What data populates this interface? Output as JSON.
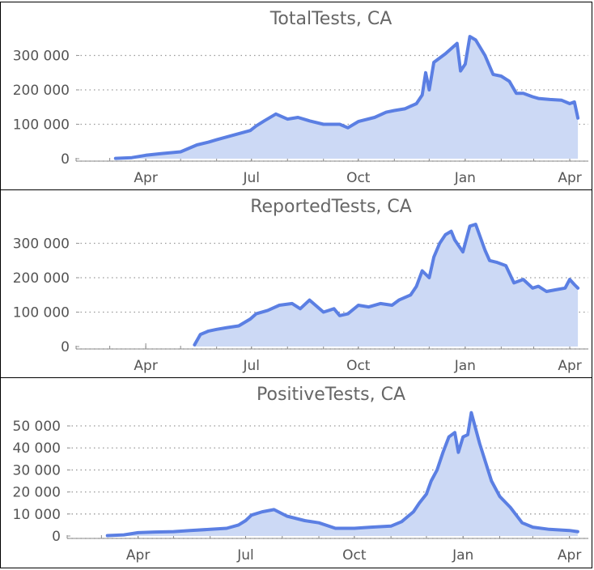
{
  "chart_data": [
    {
      "type": "area",
      "title": "TotalTests, CA",
      "x_tick_labels": [
        "Apr",
        "Jul",
        "Oct",
        "Jan",
        "Apr"
      ],
      "y_tick_labels": [
        "0",
        "100 000",
        "200 000",
        "300 000"
      ],
      "yticks": [
        0,
        100000,
        200000,
        300000
      ],
      "ylim": [
        0,
        360000
      ],
      "grid": "horizontal dotted",
      "series": [
        {
          "x": [
            "2020-03-06",
            "2020-03-20",
            "2020-04-01",
            "2020-04-15",
            "2020-05-01",
            "2020-05-15",
            "2020-05-25",
            "2020-06-01",
            "2020-06-15",
            "2020-06-30",
            "2020-07-05",
            "2020-07-12",
            "2020-07-22",
            "2020-08-01",
            "2020-08-10",
            "2020-08-20",
            "2020-09-01",
            "2020-09-15",
            "2020-09-22",
            "2020-10-01",
            "2020-10-15",
            "2020-10-25",
            "2020-11-01",
            "2020-11-10",
            "2020-11-20",
            "2020-11-25",
            "2020-11-28",
            "2020-12-01",
            "2020-12-05",
            "2020-12-15",
            "2020-12-25",
            "2020-12-28",
            "2021-01-01",
            "2021-01-05",
            "2021-01-10",
            "2021-01-18",
            "2021-01-25",
            "2021-02-01",
            "2021-02-08",
            "2021-02-14",
            "2021-02-20",
            "2021-02-28",
            "2021-03-05",
            "2021-03-15",
            "2021-03-25",
            "2021-04-01",
            "2021-04-05",
            "2021-04-08"
          ],
          "y": [
            1000,
            3000,
            10000,
            15000,
            20000,
            40000,
            48000,
            55000,
            68000,
            82000,
            95000,
            110000,
            130000,
            115000,
            120000,
            110000,
            100000,
            100000,
            90000,
            108000,
            120000,
            135000,
            140000,
            145000,
            160000,
            185000,
            250000,
            200000,
            280000,
            305000,
            335000,
            255000,
            275000,
            355000,
            345000,
            300000,
            245000,
            240000,
            225000,
            190000,
            190000,
            180000,
            175000,
            172000,
            170000,
            160000,
            165000,
            118000
          ]
        }
      ]
    },
    {
      "type": "area",
      "title": "ReportedTests, CA",
      "x_tick_labels": [
        "Apr",
        "Jul",
        "Oct",
        "Jan",
        "Apr"
      ],
      "y_tick_labels": [
        "0",
        "100 000",
        "200 000",
        "300 000"
      ],
      "yticks": [
        0,
        100000,
        200000,
        300000
      ],
      "ylim": [
        0,
        360000
      ],
      "grid": "horizontal dotted",
      "series": [
        {
          "x": [
            "2020-05-13",
            "2020-05-18",
            "2020-05-25",
            "2020-06-01",
            "2020-06-10",
            "2020-06-20",
            "2020-06-30",
            "2020-07-05",
            "2020-07-15",
            "2020-07-25",
            "2020-08-05",
            "2020-08-12",
            "2020-08-20",
            "2020-09-01",
            "2020-09-10",
            "2020-09-15",
            "2020-09-22",
            "2020-10-01",
            "2020-10-10",
            "2020-10-20",
            "2020-10-30",
            "2020-11-05",
            "2020-11-15",
            "2020-11-20",
            "2020-11-25",
            "2020-12-01",
            "2020-12-05",
            "2020-12-10",
            "2020-12-15",
            "2020-12-20",
            "2020-12-23",
            "2020-12-30",
            "2021-01-05",
            "2021-01-10",
            "2021-01-18",
            "2021-01-22",
            "2021-01-28",
            "2021-02-05",
            "2021-02-12",
            "2021-02-20",
            "2021-02-28",
            "2021-03-05",
            "2021-03-12",
            "2021-03-20",
            "2021-03-28",
            "2021-04-01",
            "2021-04-05",
            "2021-04-08"
          ],
          "y": [
            5000,
            35000,
            45000,
            50000,
            55000,
            60000,
            80000,
            95000,
            105000,
            120000,
            125000,
            110000,
            135000,
            100000,
            110000,
            90000,
            95000,
            120000,
            115000,
            125000,
            120000,
            135000,
            150000,
            175000,
            220000,
            200000,
            260000,
            300000,
            325000,
            335000,
            310000,
            275000,
            350000,
            355000,
            280000,
            250000,
            245000,
            235000,
            185000,
            195000,
            170000,
            175000,
            160000,
            165000,
            170000,
            195000,
            180000,
            170000
          ]
        }
      ]
    },
    {
      "type": "area",
      "title": "PositiveTests, CA",
      "x_tick_labels": [
        "Apr",
        "Jul",
        "Oct",
        "Jan",
        "Apr"
      ],
      "y_tick_labels": [
        "0",
        "10 000",
        "20 000",
        "30 000",
        "40 000",
        "50 000"
      ],
      "yticks": [
        0,
        10000,
        20000,
        30000,
        40000,
        50000
      ],
      "ylim": [
        0,
        57000
      ],
      "grid": "horizontal dotted",
      "series": [
        {
          "x": [
            "2020-03-06",
            "2020-03-20",
            "2020-04-01",
            "2020-04-15",
            "2020-05-01",
            "2020-05-15",
            "2020-06-01",
            "2020-06-15",
            "2020-06-25",
            "2020-07-01",
            "2020-07-06",
            "2020-07-15",
            "2020-07-25",
            "2020-08-05",
            "2020-08-20",
            "2020-09-01",
            "2020-09-15",
            "2020-10-01",
            "2020-10-15",
            "2020-11-01",
            "2020-11-10",
            "2020-11-20",
            "2020-11-25",
            "2020-12-01",
            "2020-12-05",
            "2020-12-10",
            "2020-12-15",
            "2020-12-20",
            "2020-12-25",
            "2020-12-28",
            "2021-01-01",
            "2021-01-05",
            "2021-01-08",
            "2021-01-15",
            "2021-01-25",
            "2021-02-01",
            "2021-02-10",
            "2021-02-20",
            "2021-03-01",
            "2021-03-15",
            "2021-04-01",
            "2021-04-08"
          ],
          "y": [
            200,
            500,
            1500,
            1800,
            2000,
            2500,
            3000,
            3500,
            5000,
            7000,
            9500,
            11000,
            12000,
            9000,
            7000,
            6000,
            3500,
            3500,
            4000,
            4500,
            6500,
            11000,
            15000,
            19000,
            25000,
            30000,
            38000,
            45000,
            47000,
            38000,
            45000,
            46000,
            56000,
            42000,
            25000,
            18000,
            13000,
            6000,
            4000,
            3000,
            2500,
            2000
          ]
        }
      ]
    }
  ],
  "colors": {
    "line": "#5b7fe3",
    "fill": "#ccd9f5",
    "text": "#666666",
    "grid": "#999999"
  }
}
